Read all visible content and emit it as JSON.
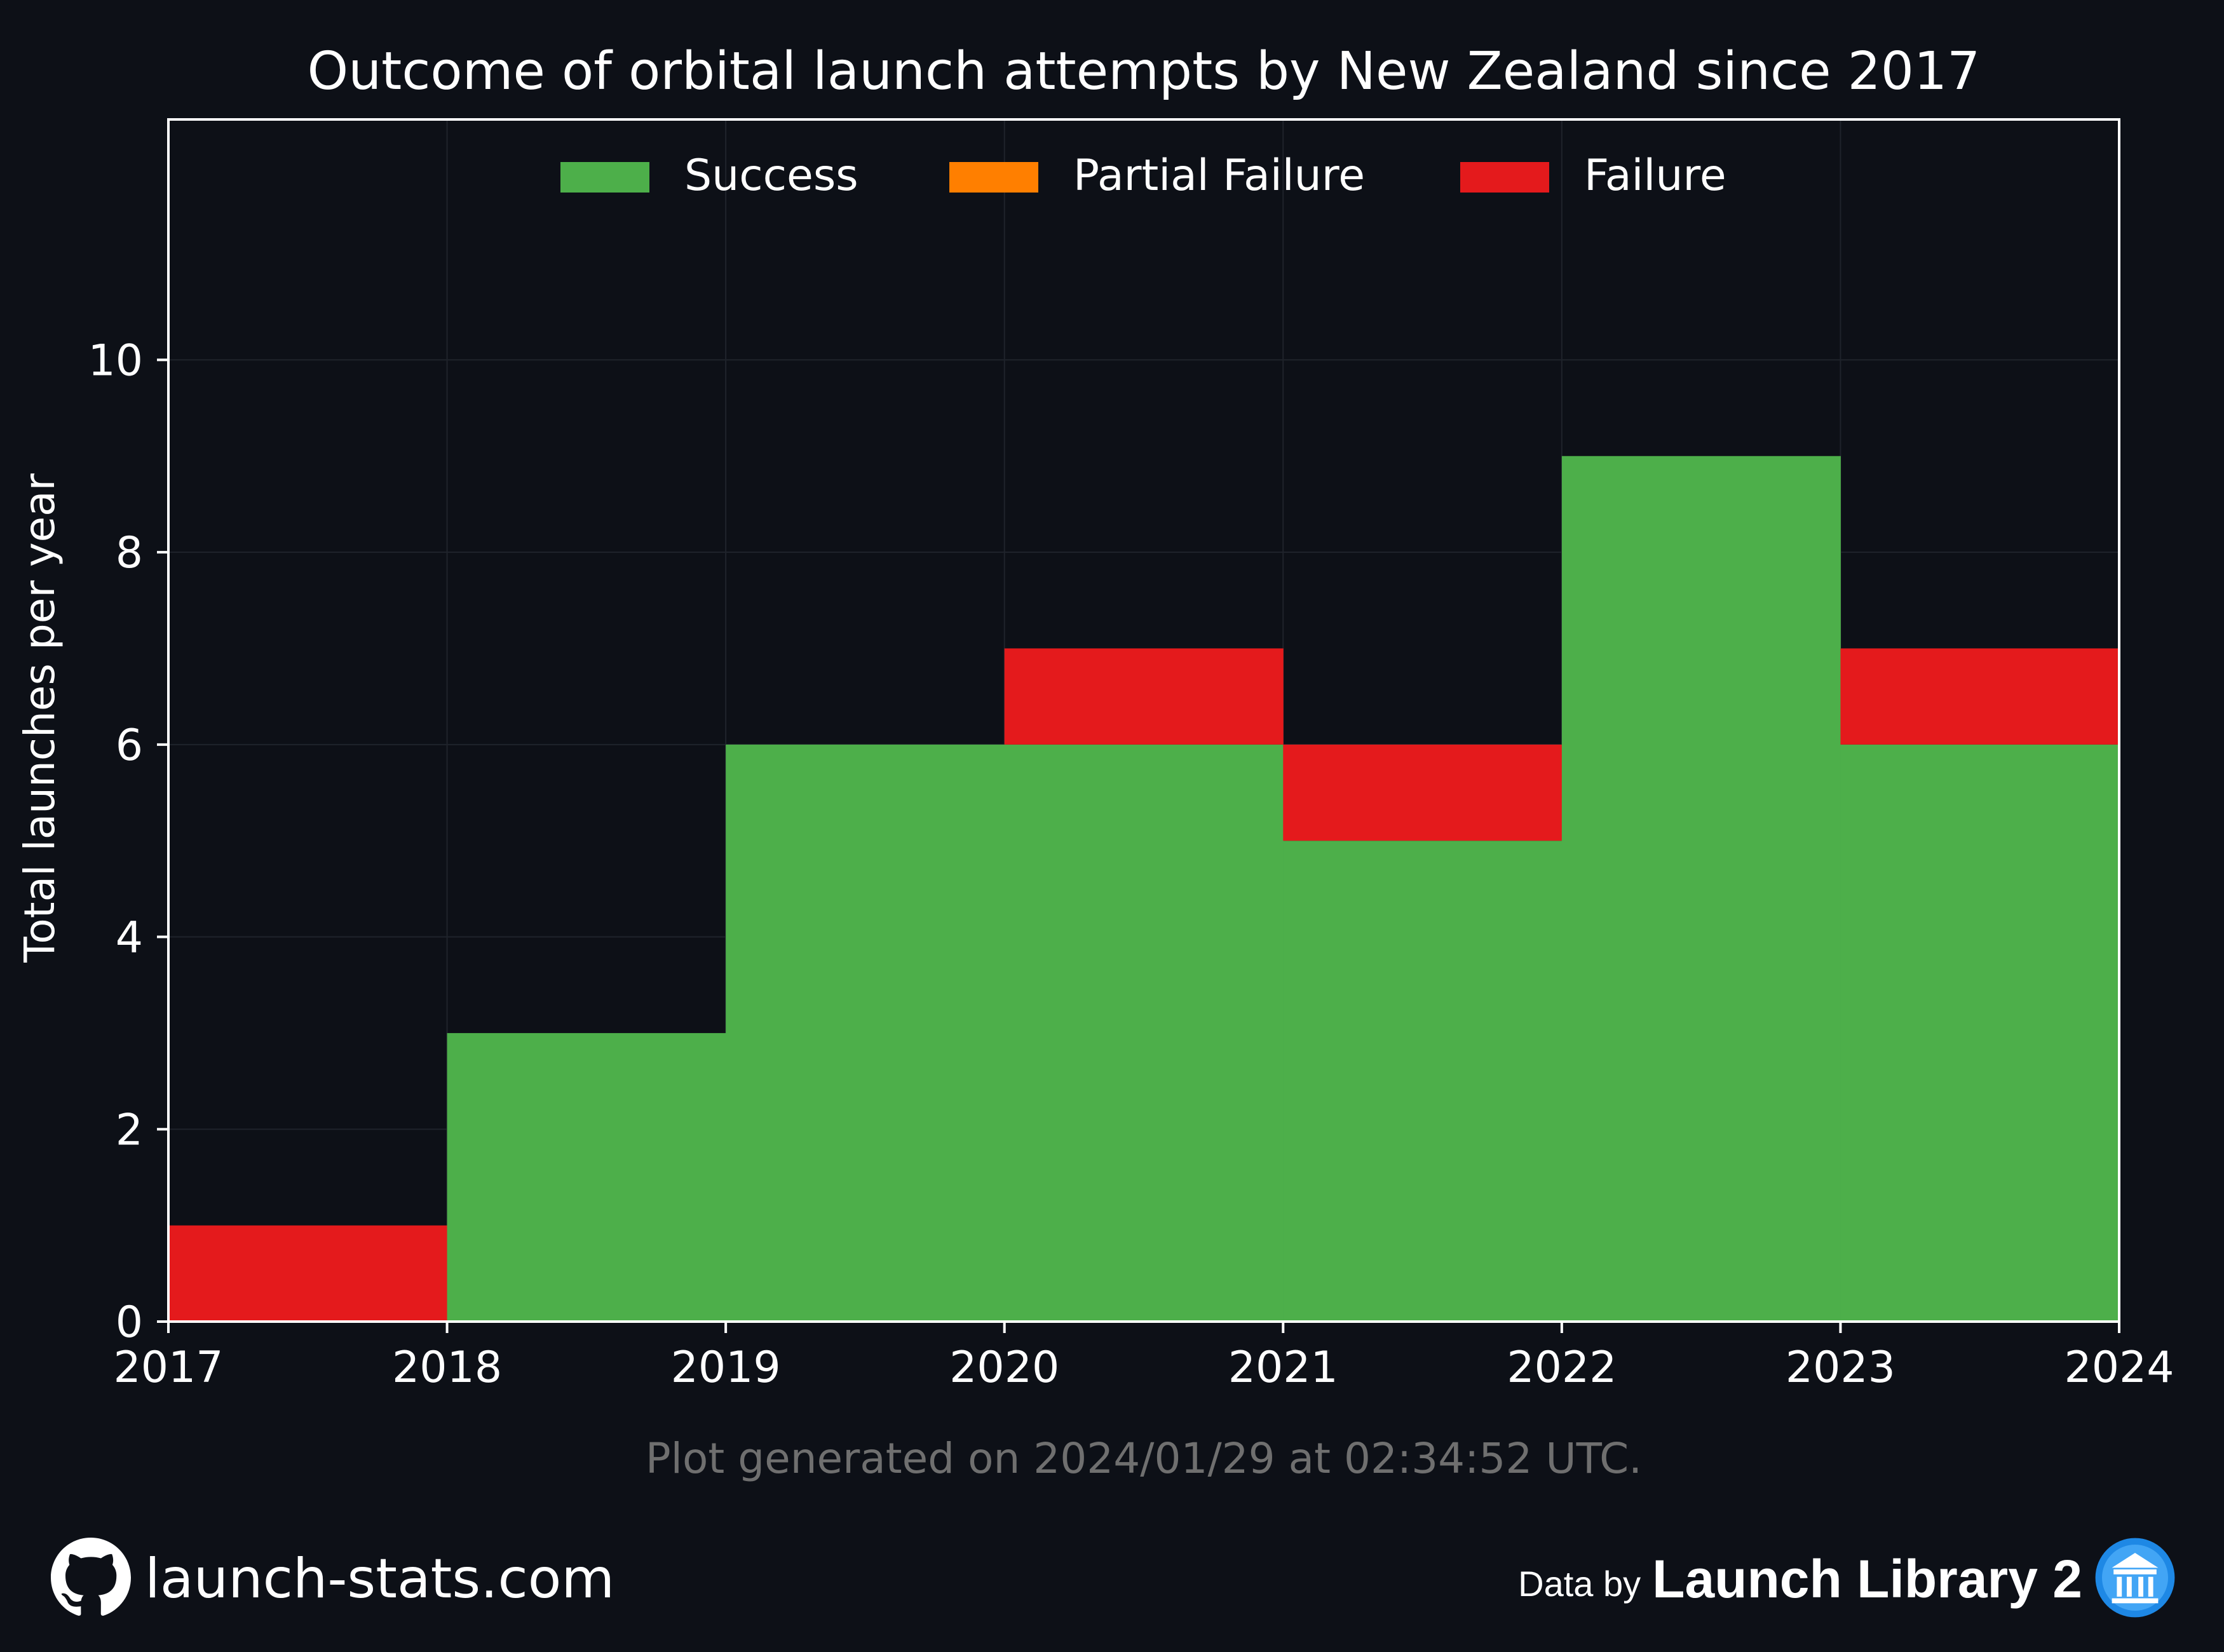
{
  "chart_data": {
    "type": "bar",
    "title": "Outcome of orbital launch attempts by New Zealand since 2017",
    "xlabel": "",
    "ylabel": "Total launches per year",
    "x_ticks": [
      "2017",
      "2018",
      "2019",
      "2020",
      "2021",
      "2022",
      "2023",
      "2024"
    ],
    "categories": [
      "2017",
      "2018",
      "2019",
      "2020",
      "2021",
      "2022",
      "2023"
    ],
    "stacked": true,
    "series": [
      {
        "name": "Success",
        "color": "#4daf4a",
        "values": [
          0,
          3,
          6,
          6,
          5,
          9,
          6
        ]
      },
      {
        "name": "Partial Failure",
        "color": "#ff7f00",
        "values": [
          0,
          0,
          0,
          0,
          0,
          0,
          0
        ]
      },
      {
        "name": "Failure",
        "color": "#e41a1c",
        "values": [
          1,
          0,
          0,
          1,
          1,
          0,
          1
        ]
      }
    ],
    "xlim": [
      2017,
      2024
    ],
    "ylim": [
      0,
      12.5
    ],
    "y_ticks": [
      0,
      2,
      4,
      6,
      8,
      10
    ],
    "grid": true,
    "legend_position": "top-center"
  },
  "footer": {
    "generated": "Plot generated on 2024/01/29 at 02:34:52 UTC.",
    "site": "launch-stats.com",
    "data_by": "Data by",
    "library": "Launch Library 2"
  },
  "colors": {
    "background": "#0d1017",
    "axes": "#ffffff",
    "grid": "#1f232b",
    "muted_text": "#6f6f6f",
    "logo_blue": "#1e88e5"
  },
  "icons": {
    "github": "github-icon",
    "library": "launch-library-icon"
  }
}
